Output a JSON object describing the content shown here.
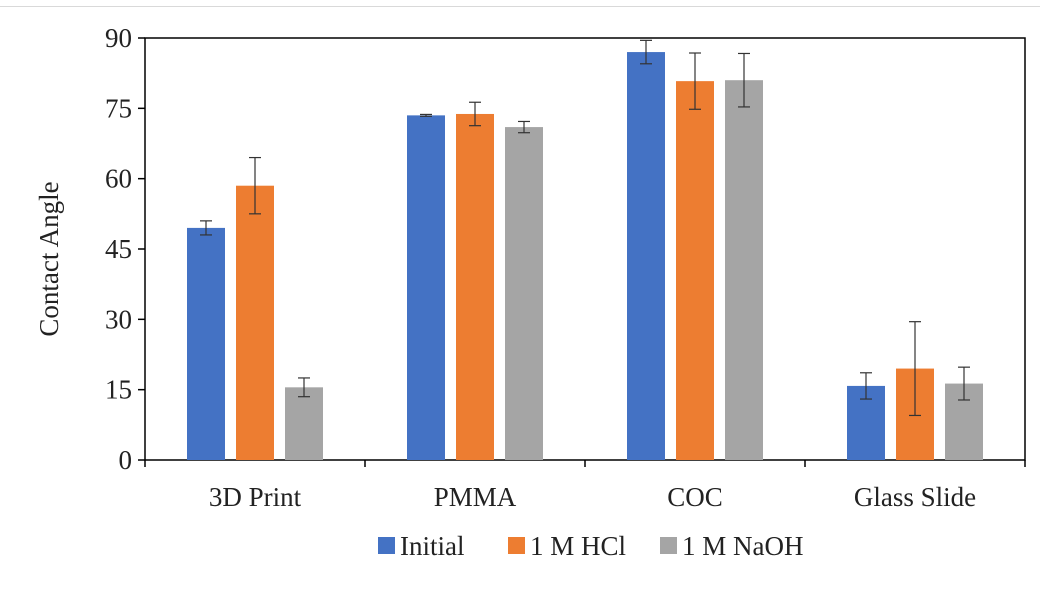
{
  "chart_data": {
    "type": "bar",
    "title": "",
    "xlabel": "",
    "ylabel": "Contact Angle",
    "ylim": [
      0,
      90
    ],
    "yticks": [
      0,
      15,
      30,
      45,
      60,
      75,
      90
    ],
    "categories": [
      "3D Print",
      "PMMA",
      "COC",
      "Glass Slide"
    ],
    "series": [
      {
        "name": "Initial",
        "color": "#4472c4",
        "values": [
          49.5,
          73.5,
          87.0,
          15.8
        ],
        "errors": [
          1.5,
          0.2,
          2.5,
          2.8
        ]
      },
      {
        "name": "1 M HCl",
        "color": "#ed7d31",
        "values": [
          58.5,
          73.8,
          80.8,
          19.5
        ],
        "errors": [
          6.0,
          2.5,
          6.0,
          10.0
        ]
      },
      {
        "name": "1 M NaOH",
        "color": "#a5a5a5",
        "values": [
          15.5,
          71.0,
          81.0,
          16.3
        ],
        "errors": [
          2.0,
          1.2,
          5.7,
          3.5
        ]
      }
    ],
    "grid": false,
    "legend": "bottom"
  }
}
